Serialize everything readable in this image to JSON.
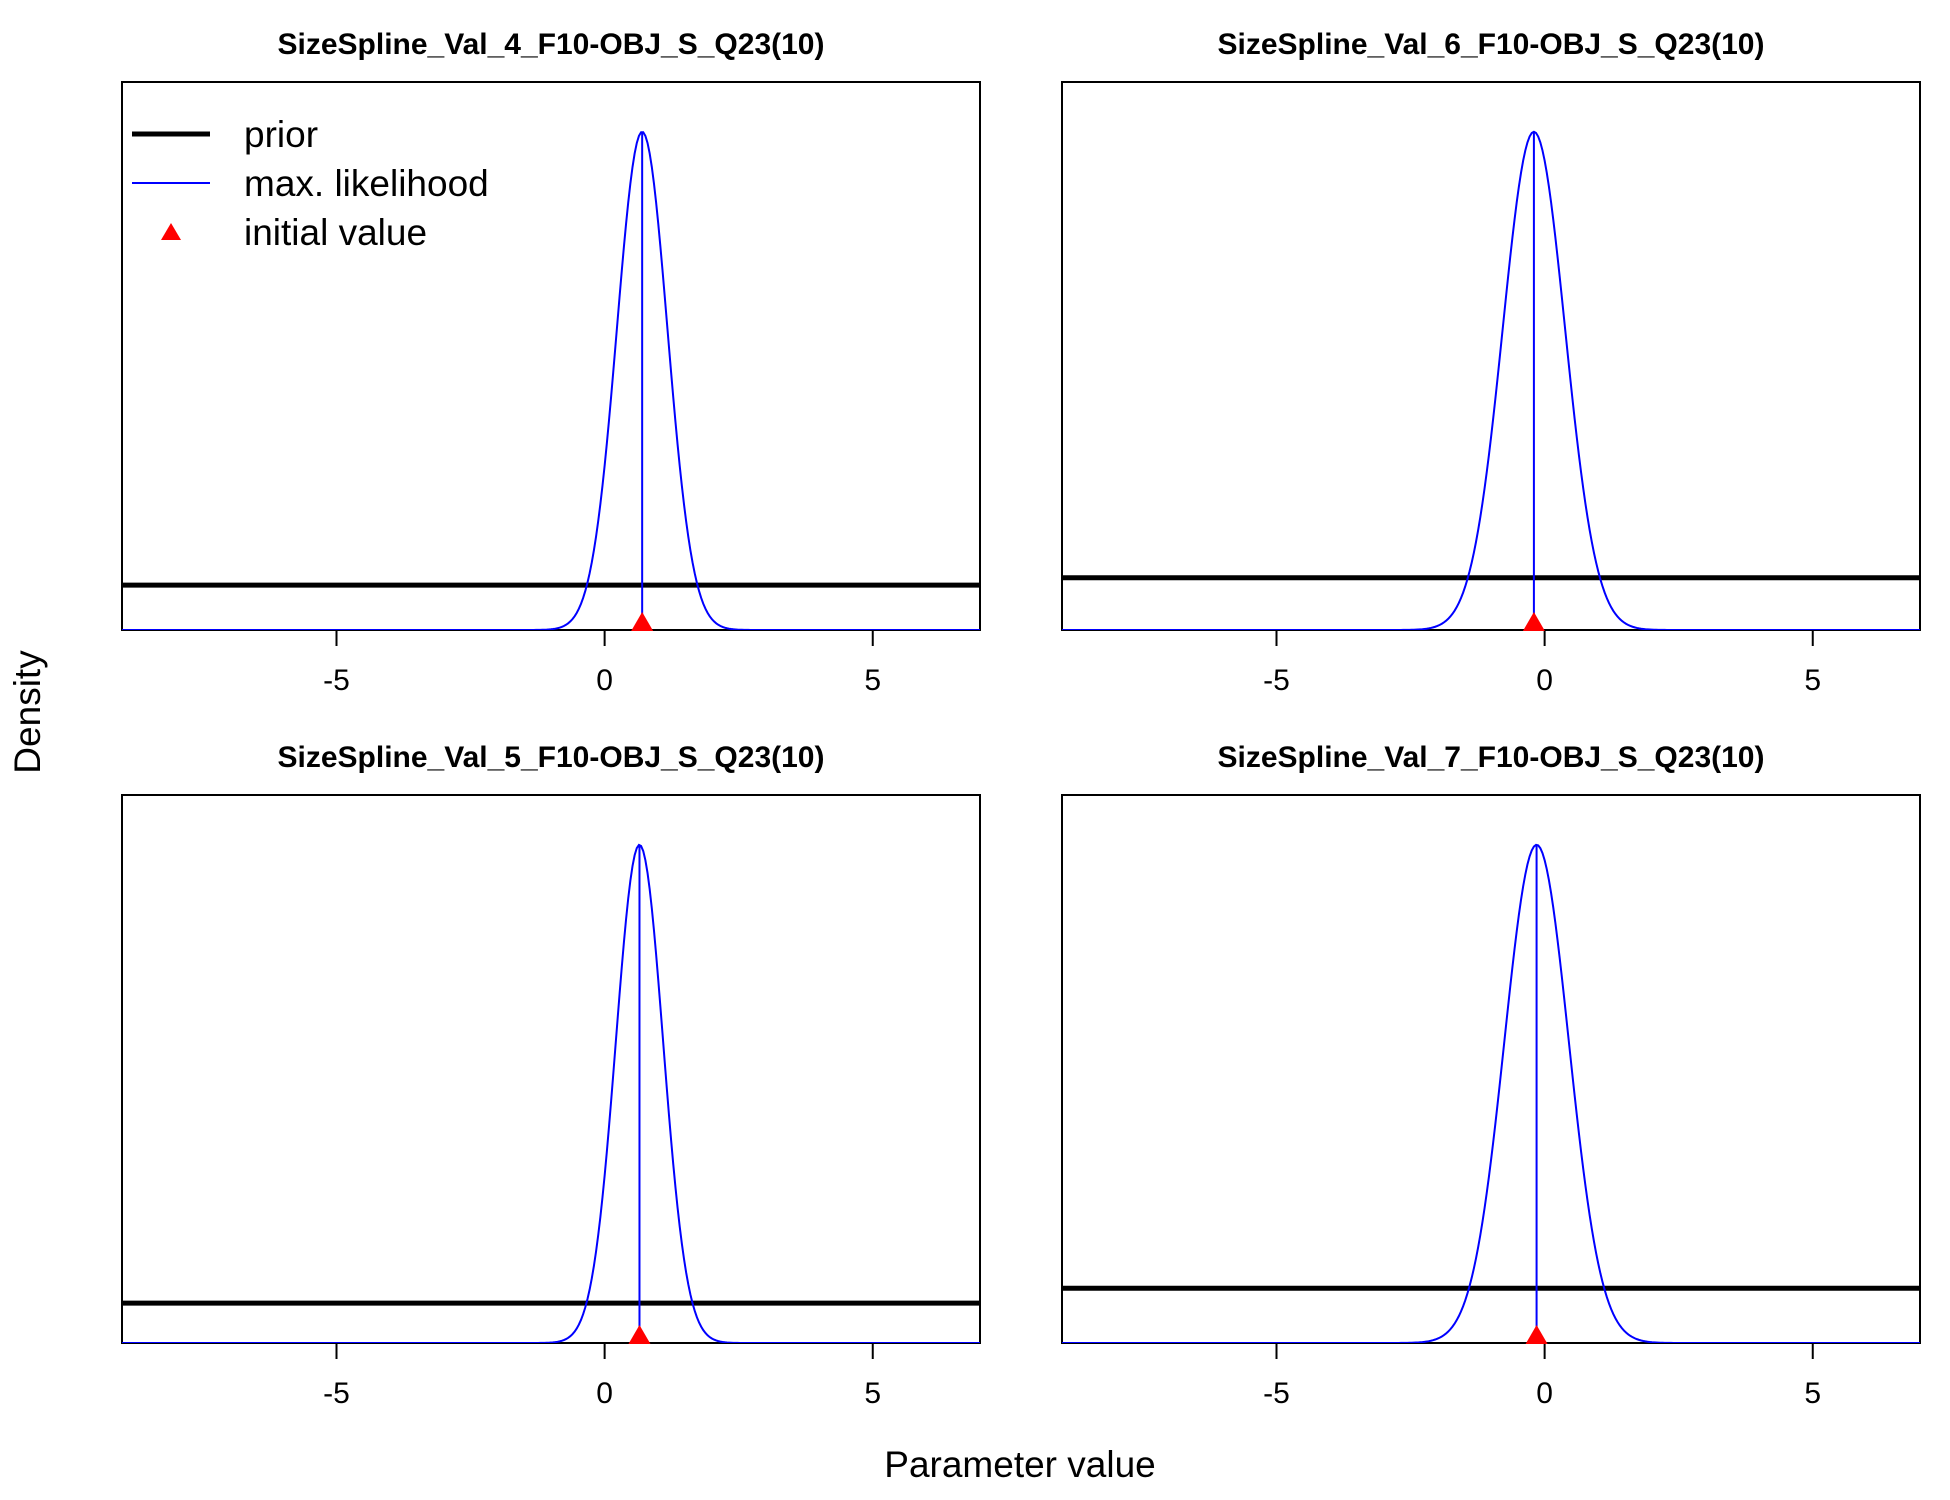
{
  "figure": {
    "ylabel": "Density",
    "xlabel": "Parameter value",
    "colors": {
      "prior": "#000000",
      "mle": "#0000ff",
      "initial": "#ff0000",
      "frame": "#000000"
    }
  },
  "legend": {
    "placement": "top-left of first panel",
    "items": [
      {
        "label": "prior",
        "style": "thick-black-line"
      },
      {
        "label": "max. likelihood",
        "style": "thin-blue-line"
      },
      {
        "label": "initial value",
        "style": "red-triangle"
      }
    ]
  },
  "chart_data": [
    {
      "type": "line",
      "title": "SizeSpline_Val_4_F10-OBJ_S_Q23(10)",
      "xlim": [
        -9,
        7
      ],
      "xticks": [
        -5,
        0,
        5
      ],
      "xtick_labels": [
        "-5",
        "0",
        "5"
      ],
      "ylim": [
        0,
        1.1
      ],
      "y_axis_ticks": "none",
      "grid": false,
      "series": [
        {
          "name": "prior",
          "kind": "flat-line",
          "y": 0.09
        },
        {
          "name": "max. likelihood",
          "kind": "normal-density",
          "mean": 0.7,
          "sd": 0.47,
          "peak": 1.0
        }
      ],
      "initial_value": 0.7
    },
    {
      "type": "line",
      "title": "SizeSpline_Val_6_F10-OBJ_S_Q23(10)",
      "xlim": [
        -9,
        7
      ],
      "xticks": [
        -5,
        0,
        5
      ],
      "xtick_labels": [
        "-5",
        "0",
        "5"
      ],
      "ylim": [
        0,
        1.1
      ],
      "y_axis_ticks": "none",
      "grid": false,
      "series": [
        {
          "name": "prior",
          "kind": "flat-line",
          "y": 0.105
        },
        {
          "name": "max. likelihood",
          "kind": "normal-density",
          "mean": -0.2,
          "sd": 0.58,
          "peak": 1.0
        }
      ],
      "initial_value": -0.2
    },
    {
      "type": "line",
      "title": "SizeSpline_Val_5_F10-OBJ_S_Q23(10)",
      "xlim": [
        -9,
        7
      ],
      "xticks": [
        -5,
        0,
        5
      ],
      "xtick_labels": [
        "-5",
        "0",
        "5"
      ],
      "ylim": [
        0,
        1.1
      ],
      "y_axis_ticks": "none",
      "grid": false,
      "series": [
        {
          "name": "prior",
          "kind": "flat-line",
          "y": 0.08
        },
        {
          "name": "max. likelihood",
          "kind": "normal-density",
          "mean": 0.65,
          "sd": 0.44,
          "peak": 1.0
        }
      ],
      "initial_value": 0.65
    },
    {
      "type": "line",
      "title": "SizeSpline_Val_7_F10-OBJ_S_Q23(10)",
      "xlim": [
        -9,
        7
      ],
      "xticks": [
        -5,
        0,
        5
      ],
      "xtick_labels": [
        "-5",
        "0",
        "5"
      ],
      "ylim": [
        0,
        1.1
      ],
      "y_axis_ticks": "none",
      "grid": false,
      "series": [
        {
          "name": "prior",
          "kind": "flat-line",
          "y": 0.11
        },
        {
          "name": "max. likelihood",
          "kind": "normal-density",
          "mean": -0.15,
          "sd": 0.6,
          "peak": 1.0
        }
      ],
      "initial_value": -0.15
    }
  ]
}
